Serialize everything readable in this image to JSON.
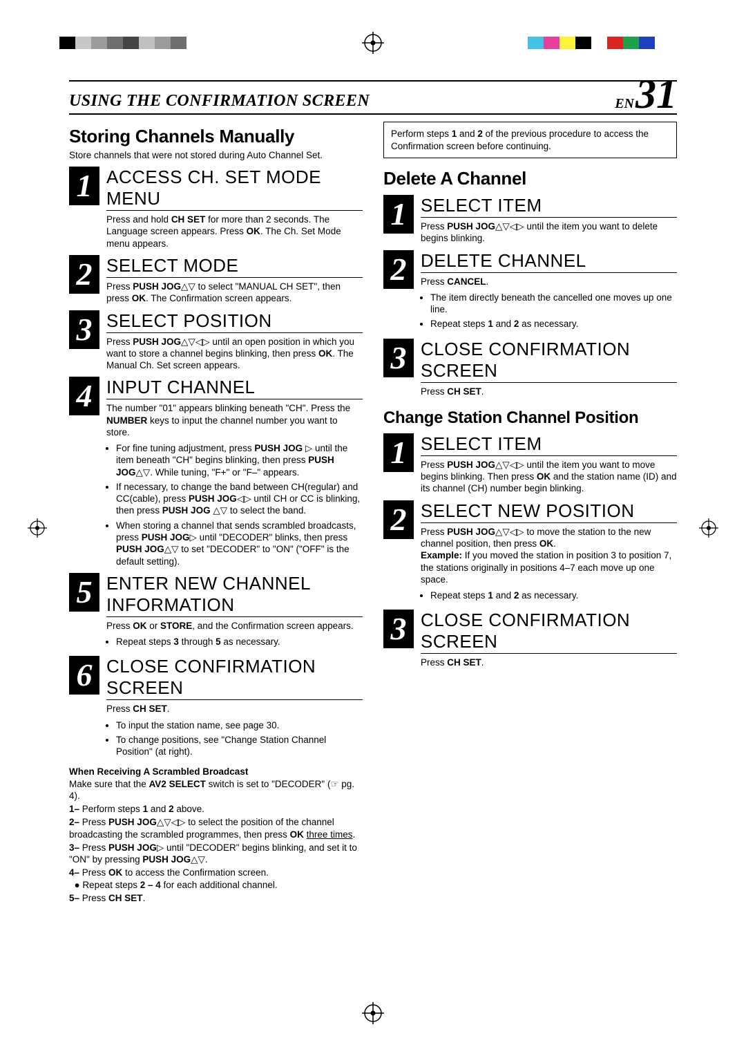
{
  "registration_bars": {
    "left": [
      "#000000",
      "#c7c7c7",
      "#9b9b9b",
      "#6f6f6f",
      "#444444",
      "#c0c0c0",
      "#9b9b9b",
      "#6f6f6f",
      "#ffffff",
      "#ffffff"
    ],
    "right": [
      "#45c1e6",
      "#e83f9c",
      "#fff23a",
      "#000000",
      "#ffffff",
      "#d9241f",
      "#1ea14a",
      "#1f3fbf",
      "#ffffff",
      "#ffffff"
    ]
  },
  "header": {
    "title": "USING THE CONFIRMATION SCREEN",
    "lang": "EN",
    "page": "31"
  },
  "left": {
    "section_title": "Storing Channels Manually",
    "section_note": "Store channels that were not stored during Auto Channel Set.",
    "steps": [
      {
        "num": "1",
        "title": "ACCESS CH. SET MODE MENU",
        "text": "Press and hold <b>CH SET</b> for more than 2 seconds. The Language screen appears. Press <b>OK</b>. The Ch. Set Mode menu appears."
      },
      {
        "num": "2",
        "title": "SELECT MODE",
        "text": "Press <b>PUSH JOG</b>△▽ to select \"MANUAL CH SET\", then press <b>OK</b>. The Confirmation screen appears."
      },
      {
        "num": "3",
        "title": "SELECT POSITION",
        "text": "Press <b>PUSH JOG</b>△▽◁▷ until an open position in which you want to store a channel begins blinking, then press <b>OK</b>. The Manual Ch. Set screen appears."
      },
      {
        "num": "4",
        "title": "INPUT CHANNEL",
        "text": "The number \"01\" appears blinking beneath \"CH\". Press the <b>NUMBER</b> keys to input the channel number you want to store.",
        "bullets": [
          "For fine tuning adjustment, press <b>PUSH JOG</b> ▷ until the item beneath \"CH\" begins blinking, then press <b>PUSH JOG</b>△▽. While tuning, \"F+\" or \"F–\" appears.",
          "If necessary, to change the band between CH(regular) and CC(cable), press <b>PUSH JOG</b>◁▷ until CH or CC is blinking, then press <b>PUSH JOG</b> △▽ to select the band.",
          "When storing a channel that sends scrambled broadcasts, press <b>PUSH JOG</b>▷ until \"DECODER\" blinks, then press <b>PUSH JOG</b>△▽ to set \"DECODER\" to \"ON\" (\"OFF\" is the default setting)."
        ]
      },
      {
        "num": "5",
        "title": "ENTER NEW CHANNEL INFORMATION",
        "text": "Press <b>OK</b> or <b>STORE</b>, and the Confirmation screen appears.",
        "bullets": [
          "Repeat steps <b>3</b> through <b>5</b> as necessary."
        ]
      },
      {
        "num": "6",
        "title": "CLOSE CONFIRMATION SCREEN",
        "text": "Press <b>CH SET</b>.",
        "bullets": [
          "To input the station name, see page 30.",
          "To change positions, see \"Change Station Channel Position\" (at right)."
        ]
      }
    ],
    "scrambled": {
      "heading": "When Receiving A Scrambled Broadcast",
      "intro": "Make sure that the <b>AV2 SELECT</b> switch is set to \"DECODER\" (☞ pg. 4).",
      "items": [
        "Perform steps <b>1</b> and <b>2</b> above.",
        "Press <b>PUSH JOG</b>△▽◁▷ to select the position of the channel broadcasting the scrambled programmes, then press <b>OK</b> <span class=\"underline\">three times</span>.",
        "Press <b>PUSH JOG</b>▷ until \"DECODER\" begins blinking, and set it to \"ON\" by pressing <b>PUSH JOG</b>△▽.",
        "Press <b>OK</b> to access the Confirmation screen.<br>&nbsp;&nbsp;● Repeat steps <b>2 – 4</b> for each additional channel.",
        "Press <b>CH SET</b>."
      ]
    }
  },
  "right": {
    "notebox": "Perform steps <b>1</b> and <b>2</b> of the previous procedure to access the Confirmation screen before continuing.",
    "sectionA": {
      "title": "Delete A Channel",
      "steps": [
        {
          "num": "1",
          "title": "SELECT ITEM",
          "text": "Press <b>PUSH JOG</b>△▽◁▷ until the item you want to delete begins blinking."
        },
        {
          "num": "2",
          "title": "DELETE CHANNEL",
          "text": "Press <b>CANCEL</b>.",
          "bullets": [
            "The item directly beneath the cancelled one moves up one line.",
            "Repeat steps <b>1</b> and <b>2</b> as necessary."
          ]
        },
        {
          "num": "3",
          "title": "CLOSE CONFIRMATION SCREEN",
          "text": "Press <b>CH SET</b>."
        }
      ]
    },
    "sectionB": {
      "title": "Change Station Channel Position",
      "steps": [
        {
          "num": "1",
          "title": "SELECT ITEM",
          "text": "Press <b>PUSH JOG</b>△▽◁▷ until the item you want to move begins blinking. Then press <b>OK</b> and the station name (ID) and its channel (CH) number begin blinking."
        },
        {
          "num": "2",
          "title": "SELECT NEW POSITION",
          "text": "Press <b>PUSH JOG</b>△▽◁▷ to move the station to the new channel position, then press <b>OK</b>.<br><b>Example:</b> If you moved the station in position 3 to position 7, the stations originally in positions 4–7 each move up one space.",
          "bullets": [
            "Repeat steps <b>1</b> and <b>2</b> as necessary."
          ]
        },
        {
          "num": "3",
          "title": "CLOSE CONFIRMATION SCREEN",
          "text": "Press <b>CH SET</b>."
        }
      ]
    }
  }
}
